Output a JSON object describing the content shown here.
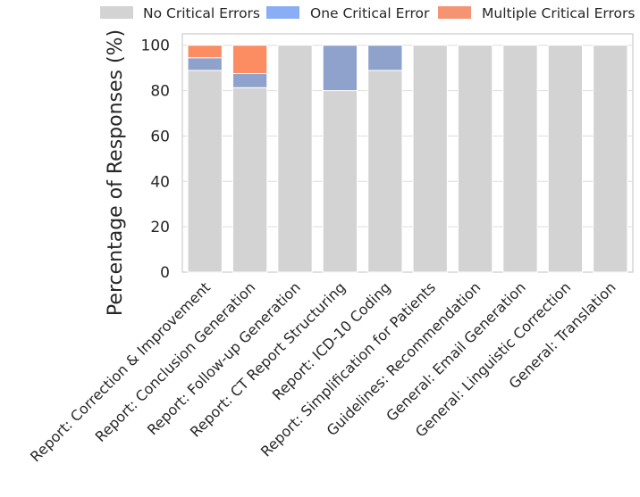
{
  "chart_data": {
    "type": "bar",
    "stacked": true,
    "title": "",
    "xlabel": "",
    "ylabel": "Percentage of Responses (%)",
    "ylim": [
      0,
      105
    ],
    "yticks": [
      0,
      20,
      40,
      60,
      80,
      100
    ],
    "grid": true,
    "legend_position": "top",
    "categories": [
      "Report: Correction & Improvement",
      "Report: Conclusion Generation",
      "Report: Follow-up Generation",
      "Report: CT Report Structuring",
      "Report: ICD-10 Coding",
      "Report: Simplification for Patients",
      "Guidelines: Recommendation",
      "General: Email Generation",
      "General: Linguistic Correction",
      "General: Translation"
    ],
    "series": [
      {
        "name": "No Critical Errors",
        "color": "#d3d3d3",
        "values": [
          88.9,
          81.3,
          100,
          80,
          88.9,
          100,
          100,
          100,
          100,
          100
        ]
      },
      {
        "name": "One Critical Error",
        "color": "#8fa2cc",
        "legend_color": "#8aaef5",
        "values": [
          5.6,
          6.2,
          0,
          20,
          11.1,
          0,
          0,
          0,
          0,
          0
        ]
      },
      {
        "name": "Multiple Critical Errors",
        "color": "#fc8d62",
        "legend_color": "#f59473",
        "values": [
          5.5,
          12.5,
          0,
          0,
          0,
          0,
          0,
          0,
          0,
          0
        ]
      }
    ]
  }
}
